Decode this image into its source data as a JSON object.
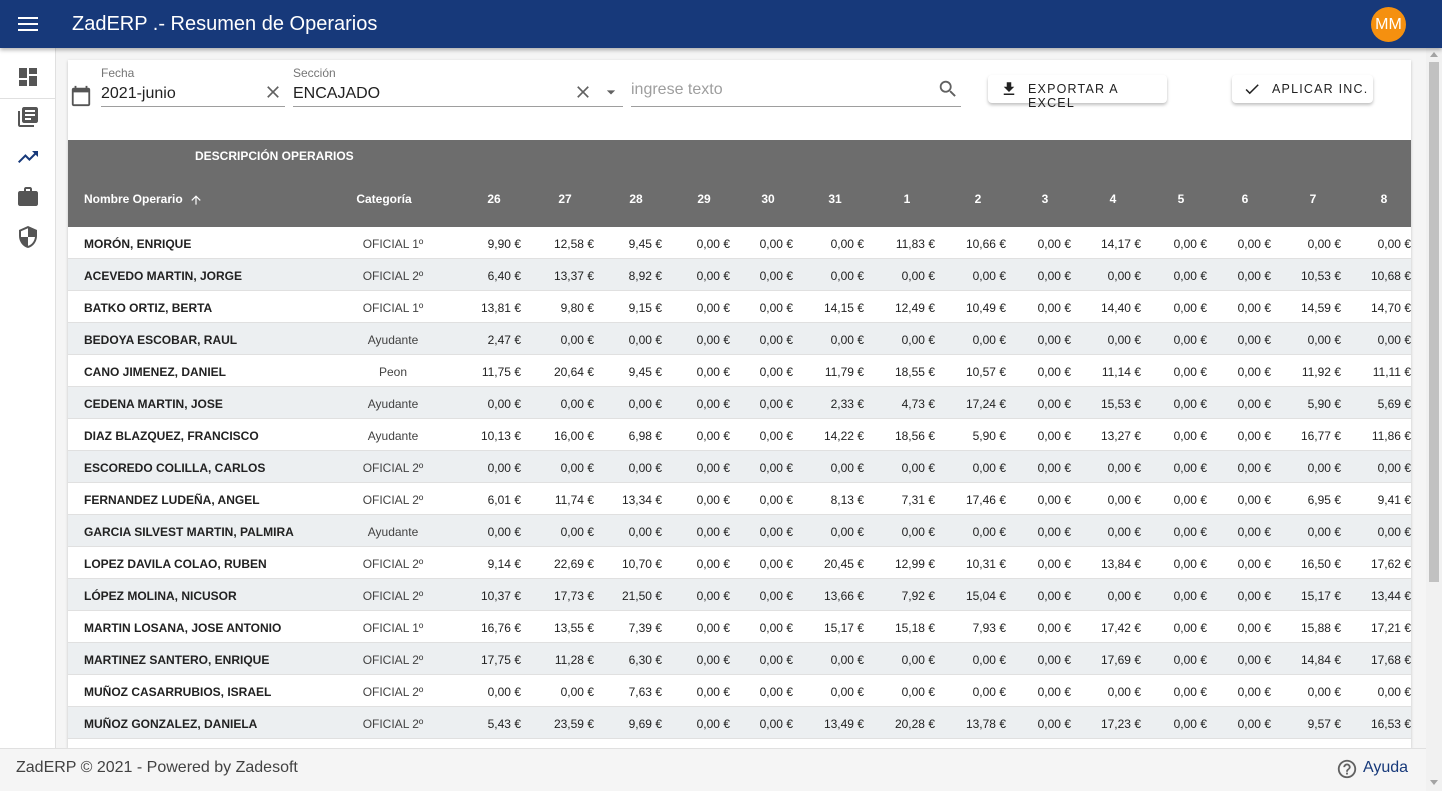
{
  "header": {
    "title": "ZadERP .- Resumen de Operarios",
    "avatar": "MM",
    "menu_icon": "menu-icon"
  },
  "sidebar": {
    "items": [
      {
        "name": "dashboard",
        "icon": "dashboard-icon"
      },
      {
        "name": "library",
        "icon": "library-books-icon"
      },
      {
        "name": "trending",
        "icon": "trending-up-icon"
      },
      {
        "name": "work",
        "icon": "briefcase-icon"
      },
      {
        "name": "security",
        "icon": "shield-icon"
      }
    ]
  },
  "filters": {
    "fecha_label": "Fecha",
    "fecha_value": "2021-junio",
    "seccion_label": "Sección",
    "seccion_value": "ENCAJADO",
    "search_placeholder": "ingrese texto"
  },
  "buttons": {
    "export": "EXPORTAR A EXCEL",
    "apply": "APLICAR INC."
  },
  "table": {
    "group_header": "DESCRIPCIÓN OPERARIOS",
    "col_name": "Nombre Operario",
    "col_category": "Categoría",
    "day_columns": [
      "26",
      "27",
      "28",
      "29",
      "30",
      "31",
      "1",
      "2",
      "3",
      "4",
      "5",
      "6",
      "7",
      "8"
    ],
    "rows": [
      {
        "name": "MORÓN, ENRIQUE",
        "category": "OFICIAL 1º",
        "values": [
          "9,90 €",
          "12,58 €",
          "9,45 €",
          "0,00 €",
          "0,00 €",
          "0,00 €",
          "11,83 €",
          "10,66 €",
          "0,00 €",
          "14,17 €",
          "0,00 €",
          "0,00 €",
          "0,00 €",
          "0,00 €"
        ]
      },
      {
        "name": "ACEVEDO MARTIN, JORGE",
        "category": "OFICIAL 2º",
        "values": [
          "6,40 €",
          "13,37 €",
          "8,92 €",
          "0,00 €",
          "0,00 €",
          "0,00 €",
          "0,00 €",
          "0,00 €",
          "0,00 €",
          "0,00 €",
          "0,00 €",
          "0,00 €",
          "10,53 €",
          "10,68 €"
        ]
      },
      {
        "name": "BATKO ORTIZ, BERTA",
        "category": "OFICIAL 1º",
        "values": [
          "13,81 €",
          "9,80 €",
          "9,15 €",
          "0,00 €",
          "0,00 €",
          "14,15 €",
          "12,49 €",
          "10,49 €",
          "0,00 €",
          "14,40 €",
          "0,00 €",
          "0,00 €",
          "14,59 €",
          "14,70 €"
        ]
      },
      {
        "name": "BEDOYA ESCOBAR, RAUL",
        "category": "Ayudante",
        "values": [
          "2,47 €",
          "0,00 €",
          "0,00 €",
          "0,00 €",
          "0,00 €",
          "0,00 €",
          "0,00 €",
          "0,00 €",
          "0,00 €",
          "0,00 €",
          "0,00 €",
          "0,00 €",
          "0,00 €",
          "0,00 €"
        ]
      },
      {
        "name": "CANO JIMENEZ, DANIEL",
        "category": "Peon",
        "values": [
          "11,75 €",
          "20,64 €",
          "9,45 €",
          "0,00 €",
          "0,00 €",
          "11,79 €",
          "18,55 €",
          "10,57 €",
          "0,00 €",
          "11,14 €",
          "0,00 €",
          "0,00 €",
          "11,92 €",
          "11,11 €"
        ]
      },
      {
        "name": "CEDENA MARTIN, JOSE",
        "category": "Ayudante",
        "values": [
          "0,00 €",
          "0,00 €",
          "0,00 €",
          "0,00 €",
          "0,00 €",
          "2,33 €",
          "4,73 €",
          "17,24 €",
          "0,00 €",
          "15,53 €",
          "0,00 €",
          "0,00 €",
          "5,90 €",
          "5,69 €"
        ]
      },
      {
        "name": "DIAZ BLAZQUEZ, FRANCISCO",
        "category": "Ayudante",
        "values": [
          "10,13 €",
          "16,00 €",
          "6,98 €",
          "0,00 €",
          "0,00 €",
          "14,22 €",
          "18,56 €",
          "5,90 €",
          "0,00 €",
          "13,27 €",
          "0,00 €",
          "0,00 €",
          "16,77 €",
          "11,86 €"
        ]
      },
      {
        "name": "ESCOREDO COLILLA, CARLOS",
        "category": "OFICIAL 2º",
        "values": [
          "0,00 €",
          "0,00 €",
          "0,00 €",
          "0,00 €",
          "0,00 €",
          "0,00 €",
          "0,00 €",
          "0,00 €",
          "0,00 €",
          "0,00 €",
          "0,00 €",
          "0,00 €",
          "0,00 €",
          "0,00 €"
        ]
      },
      {
        "name": "FERNANDEZ LUDEÑA, ANGEL",
        "category": "OFICIAL 2º",
        "values": [
          "6,01 €",
          "11,74 €",
          "13,34 €",
          "0,00 €",
          "0,00 €",
          "8,13 €",
          "7,31 €",
          "17,46 €",
          "0,00 €",
          "0,00 €",
          "0,00 €",
          "0,00 €",
          "6,95 €",
          "9,41 €"
        ]
      },
      {
        "name": "GARCIA SILVEST MARTIN, PALMIRA",
        "category": "Ayudante",
        "values": [
          "0,00 €",
          "0,00 €",
          "0,00 €",
          "0,00 €",
          "0,00 €",
          "0,00 €",
          "0,00 €",
          "0,00 €",
          "0,00 €",
          "0,00 €",
          "0,00 €",
          "0,00 €",
          "0,00 €",
          "0,00 €"
        ]
      },
      {
        "name": "LOPEZ DAVILA COLAO, RUBEN",
        "category": "OFICIAL 2º",
        "values": [
          "9,14 €",
          "22,69 €",
          "10,70 €",
          "0,00 €",
          "0,00 €",
          "20,45 €",
          "12,99 €",
          "10,31 €",
          "0,00 €",
          "13,84 €",
          "0,00 €",
          "0,00 €",
          "16,50 €",
          "17,62 €"
        ]
      },
      {
        "name": "LÓPEZ MOLINA, NICUSOR",
        "category": "OFICIAL 2º",
        "values": [
          "10,37 €",
          "17,73 €",
          "21,50 €",
          "0,00 €",
          "0,00 €",
          "13,66 €",
          "7,92 €",
          "15,04 €",
          "0,00 €",
          "0,00 €",
          "0,00 €",
          "0,00 €",
          "15,17 €",
          "13,44 €"
        ]
      },
      {
        "name": "MARTIN LOSANA, JOSE ANTONIO",
        "category": "OFICIAL 1º",
        "values": [
          "16,76 €",
          "13,55 €",
          "7,39 €",
          "0,00 €",
          "0,00 €",
          "15,17 €",
          "15,18 €",
          "7,93 €",
          "0,00 €",
          "17,42 €",
          "0,00 €",
          "0,00 €",
          "15,88 €",
          "17,21 €"
        ]
      },
      {
        "name": "MARTINEZ SANTERO, ENRIQUE",
        "category": "OFICIAL 2º",
        "values": [
          "17,75 €",
          "11,28 €",
          "6,30 €",
          "0,00 €",
          "0,00 €",
          "0,00 €",
          "0,00 €",
          "0,00 €",
          "0,00 €",
          "17,69 €",
          "0,00 €",
          "0,00 €",
          "14,84 €",
          "17,68 €"
        ]
      },
      {
        "name": "MUÑOZ CASARRUBIOS, ISRAEL",
        "category": "OFICIAL 2º",
        "values": [
          "0,00 €",
          "0,00 €",
          "7,63 €",
          "0,00 €",
          "0,00 €",
          "0,00 €",
          "0,00 €",
          "0,00 €",
          "0,00 €",
          "0,00 €",
          "0,00 €",
          "0,00 €",
          "0,00 €",
          "0,00 €"
        ]
      },
      {
        "name": "MUÑOZ GONZALEZ, DANIELA",
        "category": "OFICIAL 2º",
        "values": [
          "5,43 €",
          "23,59 €",
          "9,69 €",
          "0,00 €",
          "0,00 €",
          "13,49 €",
          "20,28 €",
          "13,78 €",
          "0,00 €",
          "17,23 €",
          "0,00 €",
          "0,00 €",
          "9,57 €",
          "16,53 €"
        ]
      }
    ]
  },
  "footer": {
    "text": "ZadERP © 2021 - Powered by Zadesoft",
    "help": "Ayuda"
  },
  "colors": {
    "primary": "#17397a",
    "accent": "#f5900f",
    "table_header": "#6d6d6d",
    "row_alt": "#eceff1"
  }
}
